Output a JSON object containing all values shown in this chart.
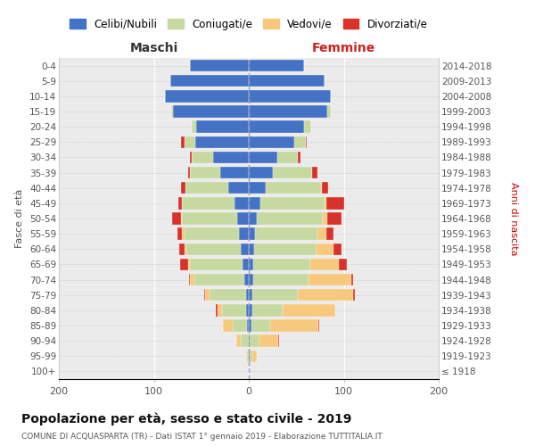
{
  "age_groups": [
    "100+",
    "95-99",
    "90-94",
    "85-89",
    "80-84",
    "75-79",
    "70-74",
    "65-69",
    "60-64",
    "55-59",
    "50-54",
    "45-49",
    "40-44",
    "35-39",
    "30-34",
    "25-29",
    "20-24",
    "15-19",
    "10-14",
    "5-9",
    "0-4"
  ],
  "birth_years": [
    "≤ 1918",
    "1919-1923",
    "1924-1928",
    "1929-1933",
    "1934-1938",
    "1939-1943",
    "1944-1948",
    "1949-1953",
    "1954-1958",
    "1959-1963",
    "1964-1968",
    "1969-1973",
    "1974-1978",
    "1979-1983",
    "1984-1988",
    "1989-1993",
    "1994-1998",
    "1999-2003",
    "2004-2008",
    "2009-2013",
    "2014-2018"
  ],
  "colors": {
    "celibi": "#4472c4",
    "coniugati": "#c5d9a0",
    "vedovi": "#f8c97d",
    "divorziati": "#d9312b"
  },
  "maschi": {
    "celibi": [
      0,
      0,
      0,
      2,
      3,
      3,
      5,
      7,
      8,
      10,
      12,
      15,
      22,
      30,
      38,
      56,
      55,
      80,
      88,
      83,
      62
    ],
    "coniugati": [
      0,
      2,
      8,
      15,
      25,
      38,
      52,
      55,
      58,
      58,
      58,
      55,
      45,
      32,
      22,
      12,
      5,
      2,
      0,
      0,
      0
    ],
    "vedovi": [
      0,
      1,
      5,
      10,
      5,
      5,
      5,
      2,
      2,
      2,
      1,
      0,
      0,
      0,
      0,
      0,
      0,
      0,
      0,
      0,
      0
    ],
    "divorziati": [
      0,
      0,
      0,
      0,
      2,
      1,
      1,
      8,
      5,
      5,
      10,
      4,
      4,
      2,
      2,
      3,
      0,
      0,
      0,
      0,
      0
    ]
  },
  "femmine": {
    "celibi": [
      0,
      1,
      1,
      3,
      4,
      4,
      5,
      5,
      6,
      7,
      8,
      12,
      18,
      25,
      30,
      48,
      58,
      83,
      86,
      80,
      58
    ],
    "coniugati": [
      0,
      3,
      10,
      20,
      32,
      48,
      58,
      60,
      65,
      65,
      70,
      68,
      58,
      42,
      22,
      12,
      8,
      3,
      0,
      0,
      0
    ],
    "vedovi": [
      0,
      4,
      20,
      50,
      55,
      58,
      45,
      30,
      18,
      10,
      5,
      2,
      1,
      0,
      0,
      0,
      0,
      0,
      0,
      0,
      0
    ],
    "divorziati": [
      0,
      0,
      1,
      1,
      0,
      2,
      2,
      8,
      9,
      7,
      15,
      18,
      7,
      5,
      2,
      1,
      0,
      0,
      0,
      0,
      0
    ]
  },
  "title": "Popolazione per età, sesso e stato civile - 2019",
  "subtitle": "COMUNE DI ACQUASPARTA (TR) - Dati ISTAT 1° gennaio 2019 - Elaborazione TUTTITALIA.IT",
  "ylabel_left": "Fasce di età",
  "ylabel_right": "Anni di nascita",
  "label_maschi": "Maschi",
  "label_femmine": "Femmine",
  "xlim": 200,
  "legend_labels": [
    "Celibi/Nubili",
    "Coniugati/e",
    "Vedovi/e",
    "Divorziati/e"
  ],
  "bg_color": "#ebebeb",
  "title_fontsize": 10,
  "subtitle_fontsize": 6.5
}
